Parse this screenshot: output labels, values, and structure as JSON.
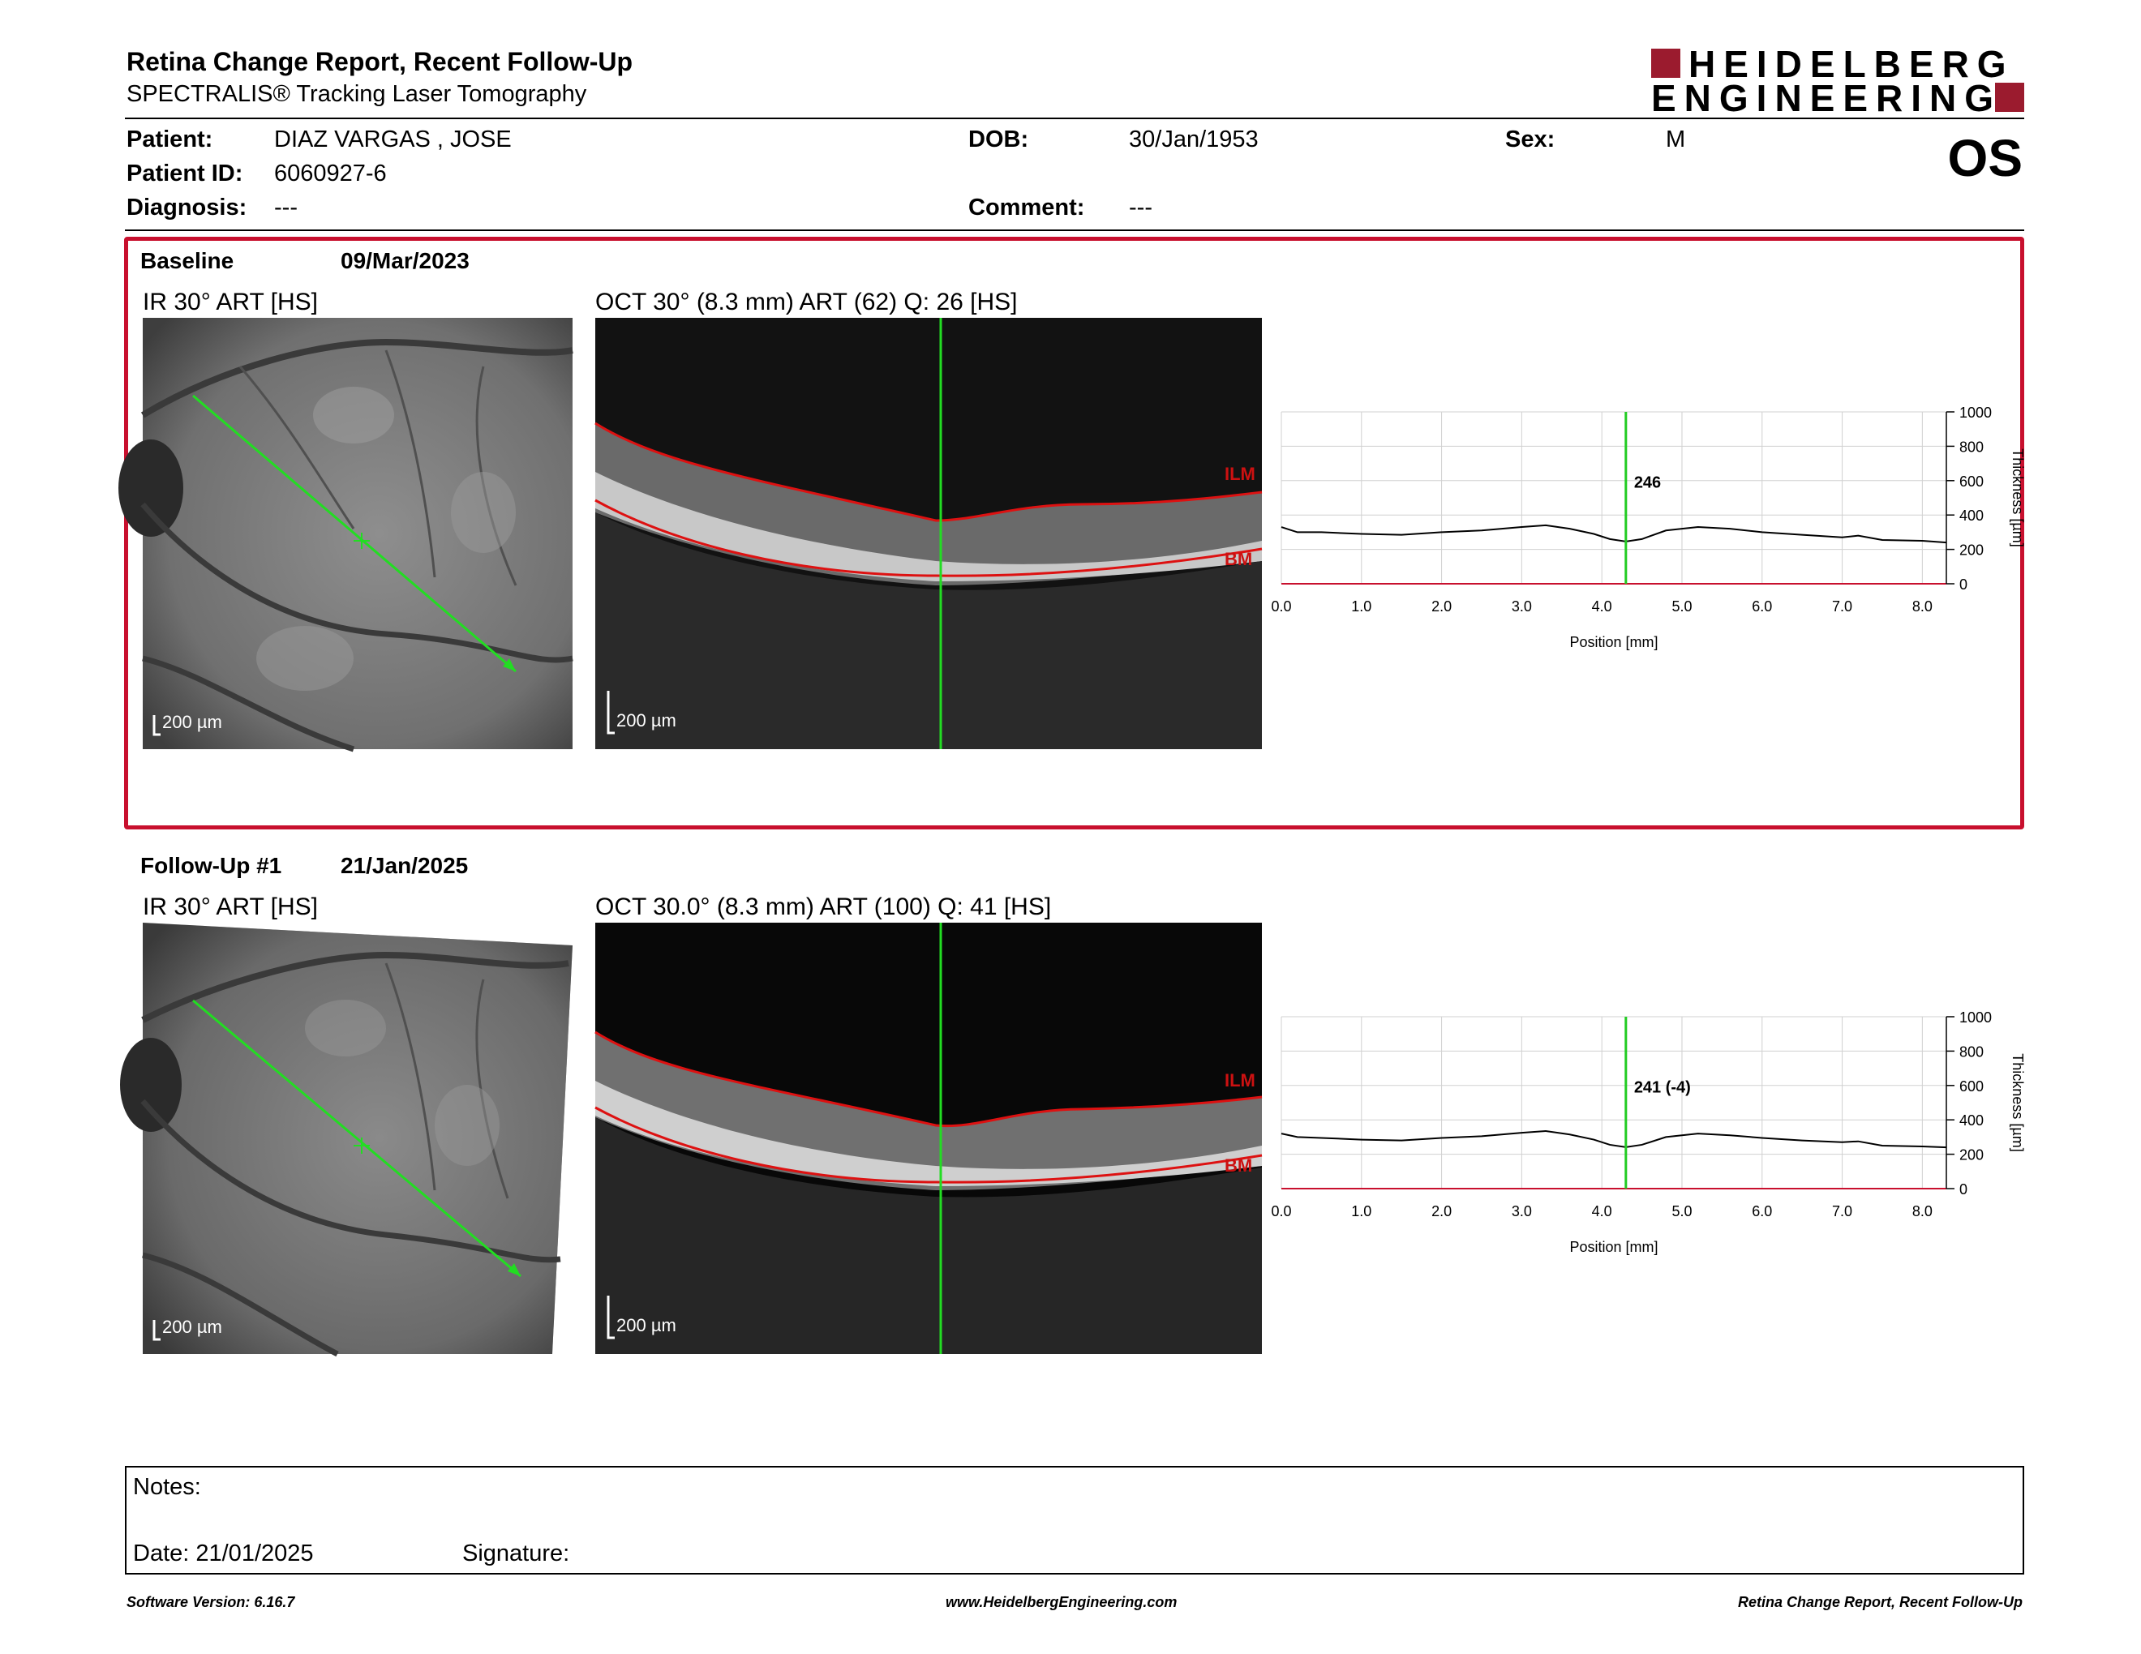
{
  "header": {
    "title": "Retina Change Report, Recent Follow-Up",
    "subtitle": "SPECTRALIS® Tracking Laser Tomography",
    "logo_line1": "HEIDELBERG",
    "logo_line2": "ENGINEERING",
    "brand_color": "#9b1b2e"
  },
  "patient": {
    "patient_label": "Patient:",
    "patient_value": "DIAZ VARGAS , JOSE",
    "id_label": "Patient ID:",
    "id_value": "6060927-6",
    "diagnosis_label": "Diagnosis:",
    "diagnosis_value": "---",
    "dob_label": "DOB:",
    "dob_value": "30/Jan/1953",
    "comment_label": "Comment:",
    "comment_value": "---",
    "sex_label": "Sex:",
    "sex_value": "M",
    "eye": "OS"
  },
  "baseline": {
    "label": "Baseline",
    "date": "09/Mar/2023",
    "ir_caption": "IR 30° ART [HS]",
    "oct_caption": "OCT 30° (8.3 mm) ART (62) Q: 26 [HS]",
    "scale_label": "200 µm",
    "ilm_label": "ILM",
    "bm_label": "BM",
    "highlight_color": "#c8102e"
  },
  "followup": {
    "label": "Follow-Up #1",
    "date": "21/Jan/2025",
    "ir_caption": "IR 30° ART [HS]",
    "oct_caption": "OCT 30.0° (8.3 mm) ART (100) Q: 41 [HS]",
    "scale_label": "200 µm",
    "ilm_label": "ILM",
    "bm_label": "BM"
  },
  "chart_data": [
    {
      "type": "line",
      "title": "",
      "xlabel": "Position [mm]",
      "ylabel": "Thickness [µm]",
      "xlim": [
        0,
        8.3
      ],
      "ylim": [
        0,
        1000
      ],
      "x_ticks": [
        "0.0",
        "1.0",
        "2.0",
        "3.0",
        "4.0",
        "5.0",
        "6.0",
        "7.0",
        "8.0"
      ],
      "y_ticks": [
        "0",
        "200",
        "400",
        "600",
        "800",
        "1000"
      ],
      "grid": true,
      "cursor_x": 4.3,
      "cursor_label": "246",
      "cursor_color": "#22cc22",
      "series": [
        {
          "x": [
            0.0,
            0.2,
            0.5,
            1.0,
            1.5,
            2.0,
            2.5,
            3.0,
            3.3,
            3.6,
            3.9,
            4.1,
            4.3,
            4.5,
            4.8,
            5.2,
            5.6,
            6.0,
            6.5,
            7.0,
            7.2,
            7.5,
            8.0,
            8.3
          ],
          "y": [
            330,
            300,
            300,
            290,
            285,
            300,
            310,
            330,
            340,
            320,
            290,
            260,
            246,
            260,
            310,
            330,
            320,
            300,
            285,
            270,
            280,
            255,
            250,
            240
          ]
        }
      ]
    },
    {
      "type": "line",
      "title": "",
      "xlabel": "Position [mm]",
      "ylabel": "Thickness [µm]",
      "xlim": [
        0,
        8.3
      ],
      "ylim": [
        0,
        1000
      ],
      "x_ticks": [
        "0.0",
        "1.0",
        "2.0",
        "3.0",
        "4.0",
        "5.0",
        "6.0",
        "7.0",
        "8.0"
      ],
      "y_ticks": [
        "0",
        "200",
        "400",
        "600",
        "800",
        "1000"
      ],
      "grid": true,
      "cursor_x": 4.3,
      "cursor_label": "241 (-4)",
      "cursor_color": "#22cc22",
      "series": [
        {
          "x": [
            0.0,
            0.2,
            0.5,
            1.0,
            1.5,
            2.0,
            2.5,
            3.0,
            3.3,
            3.6,
            3.9,
            4.1,
            4.3,
            4.5,
            4.8,
            5.2,
            5.6,
            6.0,
            6.5,
            7.0,
            7.2,
            7.5,
            8.0,
            8.3
          ],
          "y": [
            320,
            300,
            295,
            285,
            280,
            295,
            305,
            325,
            335,
            315,
            285,
            255,
            241,
            255,
            300,
            320,
            310,
            295,
            280,
            270,
            275,
            250,
            245,
            240
          ]
        }
      ]
    }
  ],
  "notes": {
    "notes_label": "Notes:",
    "date_label": "Date: 21/01/2025",
    "signature_label": "Signature:"
  },
  "footer": {
    "left": "Software Version: 6.16.7",
    "center": "www.HeidelbergEngineering.com",
    "right": "Retina Change Report, Recent Follow-Up"
  }
}
